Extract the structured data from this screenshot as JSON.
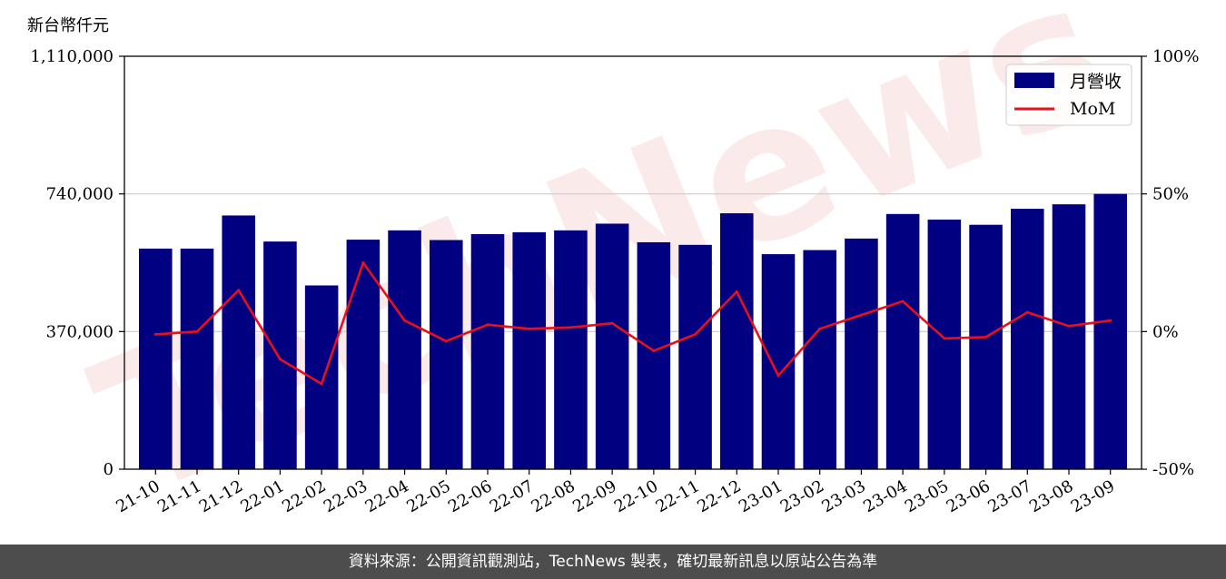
{
  "unit_label": "新台幣仟元",
  "footer_text": "資料來源：公開資訊觀測站，TechNews 製表，確切最新訊息以原站公告為準",
  "watermark": "TechNews",
  "colors": {
    "bar": "#000080",
    "line": "#e8101a",
    "grid": "#cccccc"
  },
  "chart_data": {
    "type": "bar",
    "categories": [
      "21-10",
      "21-11",
      "21-12",
      "22-01",
      "22-02",
      "22-03",
      "22-04",
      "22-05",
      "22-06",
      "22-07",
      "22-08",
      "22-09",
      "22-10",
      "22-11",
      "22-12",
      "23-01",
      "23-02",
      "23-03",
      "23-04",
      "23-05",
      "23-06",
      "23-07",
      "23-08",
      "23-09"
    ],
    "series": [
      {
        "name": "月營收",
        "type": "bar",
        "axis": "left",
        "values": [
          593000,
          593000,
          682000,
          612000,
          494000,
          617000,
          642000,
          616000,
          632000,
          637000,
          642000,
          660000,
          610000,
          603000,
          688000,
          578000,
          589000,
          620000,
          686000,
          671000,
          657000,
          700000,
          712000,
          740000
        ]
      },
      {
        "name": "MoM",
        "type": "line",
        "axis": "right",
        "values": [
          -1.0,
          0.0,
          15.0,
          -10.0,
          -19.0,
          25.0,
          4.0,
          -3.5,
          2.5,
          1.0,
          1.5,
          3.0,
          -7.0,
          -1.0,
          14.5,
          -16.0,
          1.0,
          6.0,
          11.0,
          -2.5,
          -2.0,
          7.0,
          2.0,
          4.0
        ]
      }
    ],
    "yticks_left": [
      "0",
      "370,000",
      "740,000",
      "1,110,000"
    ],
    "ylim_left": [
      0,
      1110000
    ],
    "yticks_right": [
      "-50%",
      "0%",
      "50%",
      "100%"
    ],
    "ylim_right": [
      -50,
      100
    ],
    "grid": "horizontal",
    "legend_position": "top-right"
  }
}
